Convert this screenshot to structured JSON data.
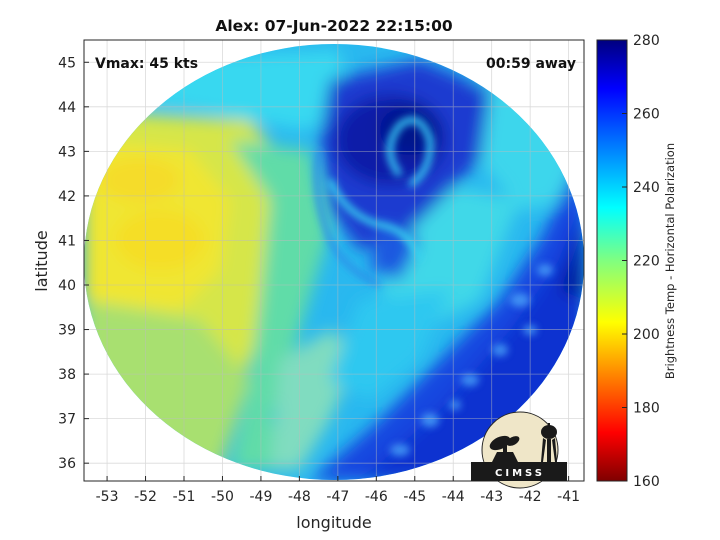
{
  "title": "Alex: 07-Jun-2022 22:15:00",
  "annotations": {
    "vmax": "Vmax: 45 kts",
    "time_away": "00:59 away"
  },
  "axes": {
    "xlabel": "longitude",
    "ylabel": "latitude",
    "xlim": [
      -53.6,
      -40.6
    ],
    "ylim": [
      35.6,
      45.5
    ],
    "xticks": [
      "-53",
      "-52",
      "-51",
      "-50",
      "-49",
      "-48",
      "-47",
      "-46",
      "-45",
      "-44",
      "-43",
      "-42",
      "-41"
    ],
    "yticks": [
      "36",
      "37",
      "38",
      "39",
      "40",
      "41",
      "42",
      "43",
      "44",
      "45"
    ],
    "grid": true
  },
  "colorbar": {
    "label": "Brightness Temp - Horizontal Polarization",
    "ticks": [
      "160",
      "180",
      "200",
      "220",
      "240",
      "260",
      "280"
    ],
    "range": [
      160,
      280
    ],
    "colormap": "jet"
  },
  "logo": {
    "text": "CIMSS"
  },
  "colors": {
    "warm_yellow": "#f0e632",
    "cyan": "#2ee0f0",
    "light_blue": "#18a8f0",
    "deep_blue": "#0a2ec8",
    "navy": "#00128c"
  }
}
